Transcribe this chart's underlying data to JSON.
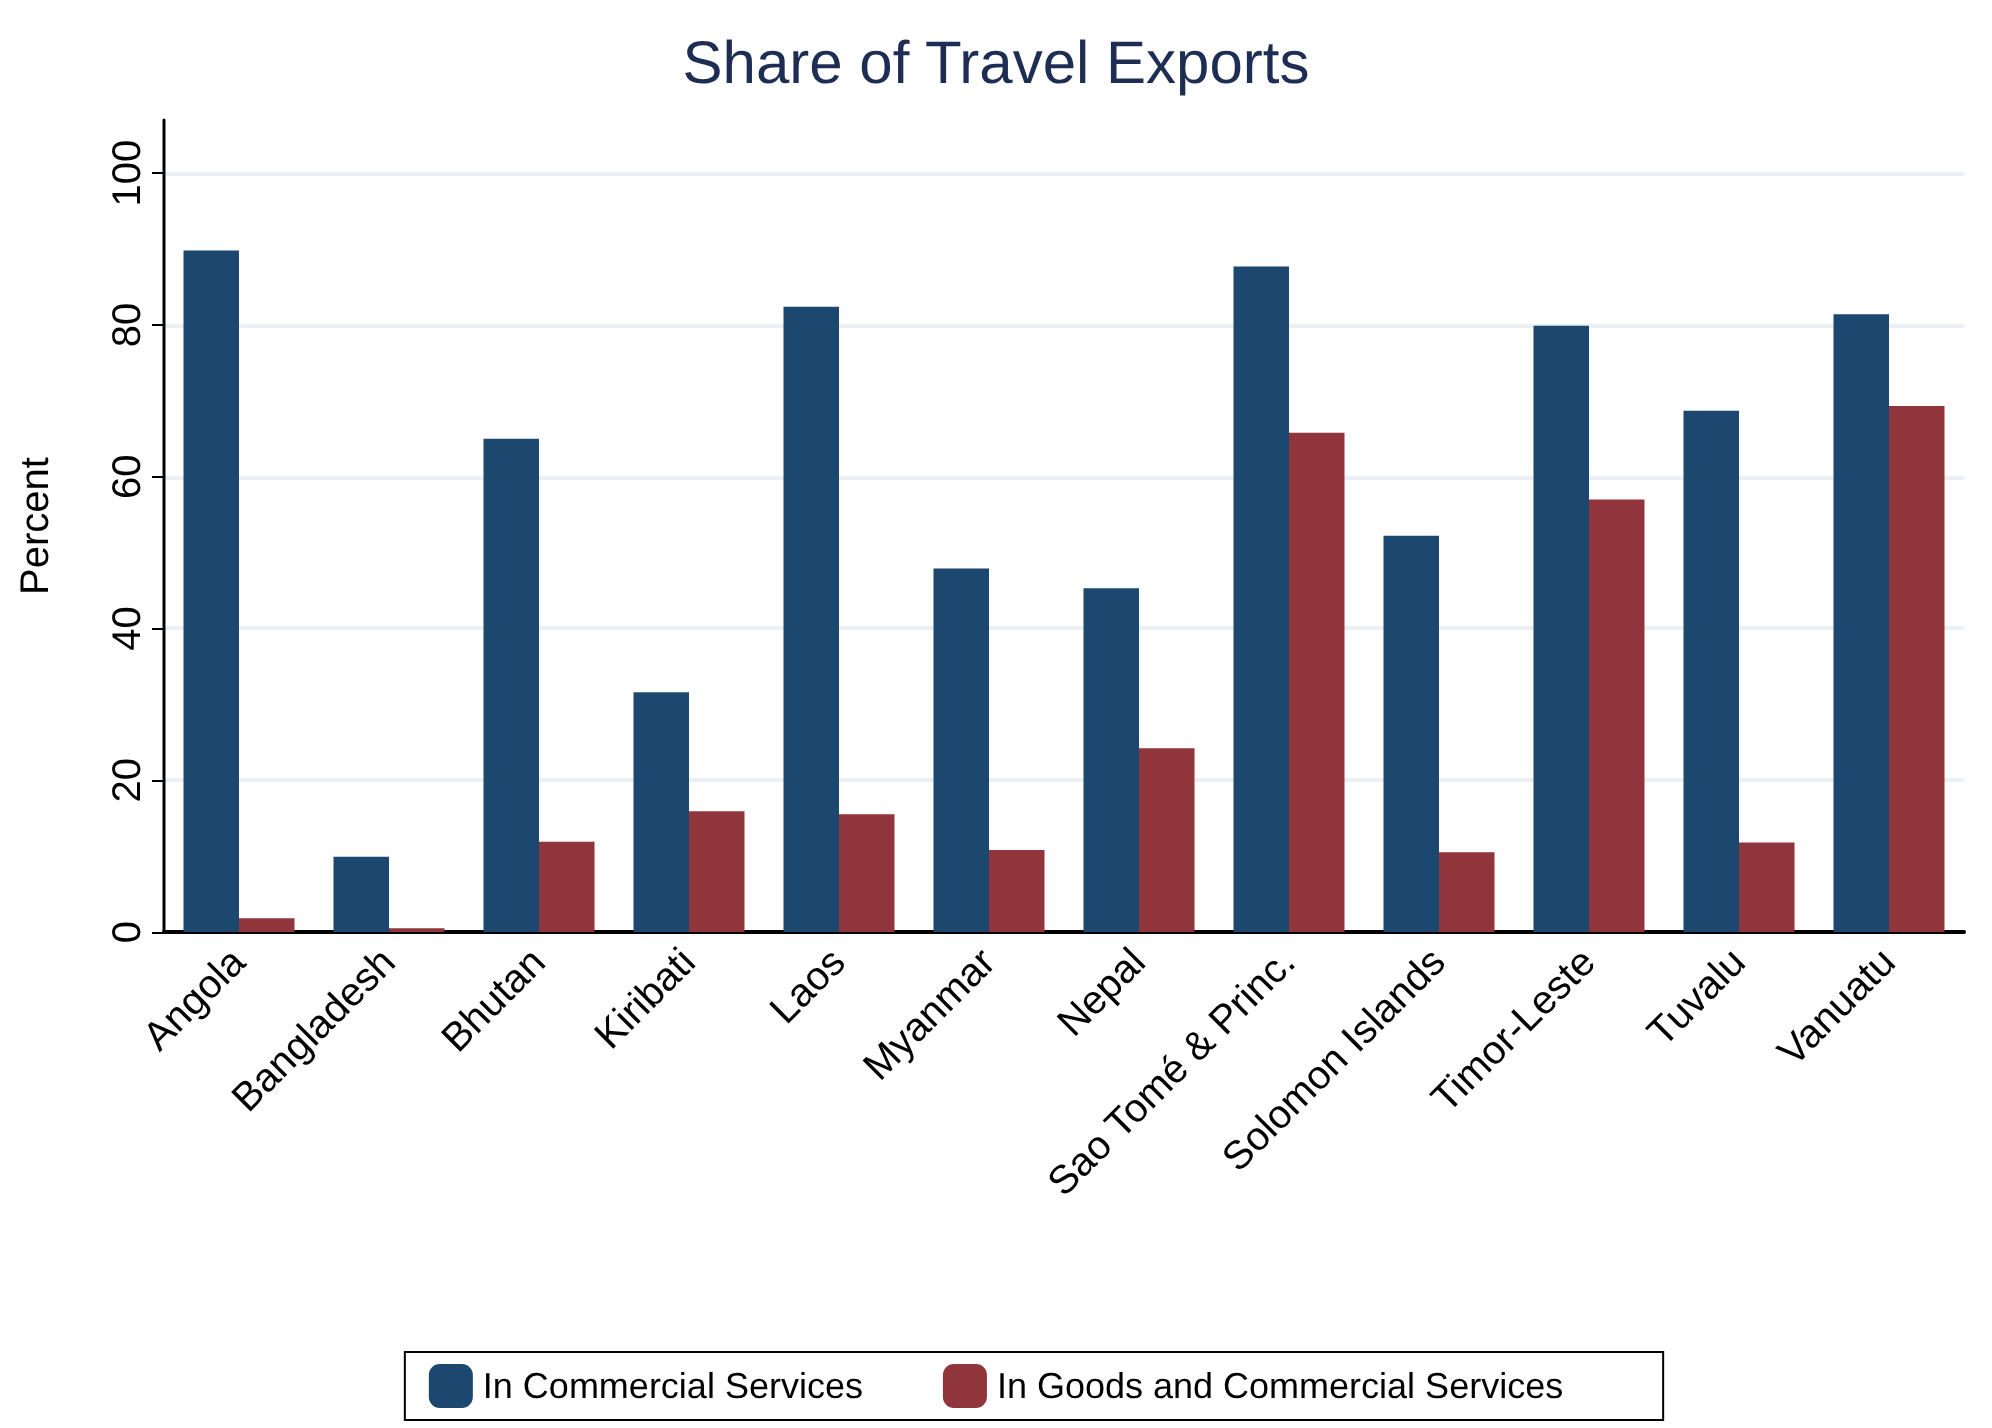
{
  "chart_data": {
    "type": "bar",
    "title": "Share of Travel Exports",
    "ylabel": "Percent",
    "categories": [
      "Angola",
      "Bangladesh",
      "Bhutan",
      "Kiribati",
      "Laos",
      "Myanmar",
      "Nepal",
      "Sao Tomé & Princ.",
      "Solomon Islands",
      "Timor-Leste",
      "Tuvalu",
      "Vanuatu"
    ],
    "series": [
      {
        "name": "In Commercial Services",
        "color": "#1c476f",
        "values": [
          89.8,
          9.9,
          65.0,
          31.6,
          82.4,
          47.9,
          45.3,
          87.7,
          52.2,
          79.9,
          68.7,
          81.4
        ]
      },
      {
        "name": "In Goods and Commercial Services",
        "color": "#90353b",
        "values": [
          1.8,
          0.5,
          11.9,
          15.9,
          15.5,
          10.8,
          24.2,
          65.8,
          10.5,
          57.0,
          11.8,
          69.3
        ]
      }
    ],
    "ylim": [
      0,
      107
    ],
    "yticks": [
      0,
      20,
      40,
      60,
      80,
      100
    ],
    "grid": "y",
    "legend": "bottom"
  }
}
